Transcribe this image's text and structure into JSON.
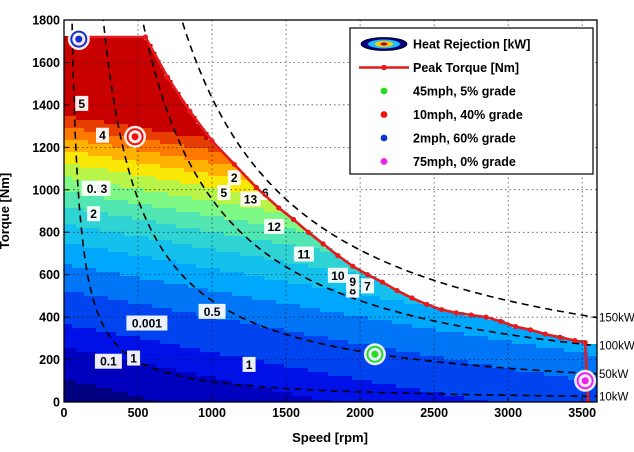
{
  "chart_data": {
    "type": "contour",
    "xlabel": "Speed [rpm]",
    "ylabel": "Torque [Nm]",
    "xlim": [
      0,
      3600
    ],
    "ylim": [
      0,
      1800
    ],
    "x_ticks": [
      0,
      500,
      1000,
      1500,
      2000,
      2500,
      3000,
      3500
    ],
    "y_ticks": [
      0,
      200,
      400,
      600,
      800,
      1000,
      1200,
      1400,
      1600,
      1800
    ],
    "grid": true,
    "legend_position": "top-right",
    "legend": [
      {
        "label": "Heat Rejection [kW]",
        "marker": "filled-contour"
      },
      {
        "label": "Peak Torque [Nm]",
        "marker": "red-line-dot",
        "color": "#e41a1c"
      },
      {
        "label": "45mph,   5% grade",
        "marker": "dot",
        "color": "#22dd22"
      },
      {
        "label": "10mph, 40% grade",
        "marker": "dot",
        "color": "#ee1111"
      },
      {
        "label": "2mph,   60% grade",
        "marker": "dot",
        "color": "#1133cc"
      },
      {
        "label": "75mph,   0% grade",
        "marker": "dot",
        "color": "#ee22ee"
      }
    ],
    "contour_levels_kw": [
      0.001,
      0.1,
      0.5,
      1,
      2,
      3,
      4,
      5,
      6,
      7,
      8,
      9,
      10,
      11,
      12,
      13
    ],
    "contour_labels": [
      "0.001",
      "0.1",
      "0.5",
      "0.5",
      "1",
      "1",
      "2",
      "2",
      "3",
      "4",
      "5",
      "5",
      "6",
      "7",
      "8",
      "9",
      "10",
      "11",
      "12",
      "13"
    ],
    "constant_power_lines": [
      {
        "label": "10kW",
        "power_kw": 10
      },
      {
        "label": "50kW",
        "power_kw": 50
      },
      {
        "label": "100kW",
        "power_kw": 100
      },
      {
        "label": "150kW",
        "power_kw": 150
      }
    ],
    "peak_torque": {
      "name": "Peak Torque [Nm]",
      "x": [
        150,
        550,
        700,
        850,
        1000,
        1150,
        1300,
        1450,
        1550,
        1650,
        1750,
        1850,
        1950,
        2050,
        2150,
        2250,
        2350,
        2450,
        2550,
        2650,
        2750,
        2850,
        2950,
        3050,
        3150,
        3250,
        3350,
        3450,
        3520,
        3540
      ],
      "y": [
        1720,
        1720,
        1530,
        1370,
        1230,
        1120,
        1010,
        915,
        860,
        800,
        745,
        690,
        640,
        600,
        565,
        525,
        490,
        460,
        435,
        420,
        410,
        400,
        380,
        355,
        340,
        320,
        305,
        290,
        280,
        0
      ]
    },
    "operating_points": [
      {
        "name": "45mph,   5% grade",
        "x": 2100,
        "y": 225,
        "color": "#22dd22"
      },
      {
        "name": "10mph, 40% grade",
        "x": 480,
        "y": 1250,
        "color": "#ee1111"
      },
      {
        "name": "2mph,   60% grade",
        "x": 100,
        "y": 1710,
        "color": "#1133cc"
      },
      {
        "name": "75mph,   0% grade",
        "x": 3520,
        "y": 100,
        "color": "#ee22ee"
      }
    ]
  }
}
